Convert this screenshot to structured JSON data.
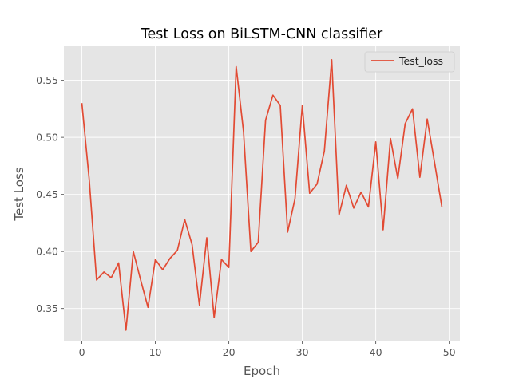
{
  "chart_data": {
    "type": "line",
    "title": "Test Loss on BiLSTM-CNN classifier",
    "xlabel": "Epoch",
    "ylabel": "Test Loss",
    "xlim": [
      -2.45,
      51.45
    ],
    "ylim": [
      0.3218,
      0.5798
    ],
    "xticks": [
      0,
      10,
      20,
      30,
      40,
      50
    ],
    "yticks": [
      0.35,
      0.4,
      0.45,
      0.5,
      0.55
    ],
    "xtick_labels": [
      "0",
      "10",
      "20",
      "30",
      "40",
      "50"
    ],
    "ytick_labels": [
      "0.35",
      "0.40",
      "0.45",
      "0.50",
      "0.55"
    ],
    "grid": true,
    "legend_position": "top-right",
    "background": "#e5e5e5",
    "series": [
      {
        "name": "Test_loss",
        "color": "#e24a33",
        "x": [
          0,
          1,
          2,
          3,
          4,
          5,
          6,
          7,
          8,
          9,
          10,
          11,
          12,
          13,
          14,
          15,
          16,
          17,
          18,
          19,
          20,
          21,
          22,
          23,
          24,
          25,
          26,
          27,
          28,
          29,
          30,
          31,
          32,
          33,
          34,
          35,
          36,
          37,
          38,
          39,
          40,
          41,
          42,
          43,
          44,
          45,
          46,
          47,
          48,
          49
        ],
        "values": [
          0.53,
          0.463,
          0.375,
          0.382,
          0.377,
          0.39,
          0.331,
          0.4,
          0.375,
          0.351,
          0.393,
          0.384,
          0.394,
          0.401,
          0.428,
          0.406,
          0.353,
          0.412,
          0.342,
          0.393,
          0.386,
          0.562,
          0.505,
          0.4,
          0.408,
          0.515,
          0.537,
          0.528,
          0.417,
          0.446,
          0.528,
          0.451,
          0.459,
          0.488,
          0.568,
          0.432,
          0.458,
          0.438,
          0.452,
          0.439,
          0.496,
          0.419,
          0.499,
          0.464,
          0.512,
          0.525,
          0.465,
          0.516,
          0.478,
          0.439
        ]
      }
    ]
  }
}
